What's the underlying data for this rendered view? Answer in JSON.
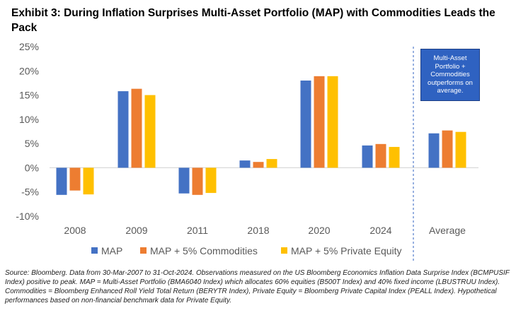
{
  "chart_data": {
    "type": "bar",
    "title": "Exhibit 3: During Inflation Surprises Multi-Asset Portfolio (MAP) with Commodities Leads the Pack",
    "categories": [
      "2008",
      "2009",
      "2011",
      "2018",
      "2020",
      "2024",
      "Average"
    ],
    "series": [
      {
        "name": "MAP",
        "color": "#4472c4",
        "values": [
          -5.6,
          15.8,
          -5.3,
          1.5,
          18.0,
          4.6,
          7.1
        ]
      },
      {
        "name": "MAP + 5% Commodities",
        "color": "#ed7d31",
        "values": [
          -4.7,
          16.3,
          -5.6,
          1.2,
          18.9,
          4.9,
          7.7
        ]
      },
      {
        "name": "MAP + 5% Private Equity",
        "color": "#ffc000",
        "values": [
          -5.5,
          15.0,
          -5.2,
          1.8,
          18.9,
          4.3,
          7.4
        ]
      }
    ],
    "y_ticks": [
      "25%",
      "20%",
      "15%",
      "10%",
      "5%",
      "0%",
      "-5%",
      "-10%"
    ],
    "ylim": [
      -10,
      25
    ],
    "xlabel": "",
    "ylabel": "",
    "legend_position": "bottom",
    "annotation": "Multi-Asset Portfolio + Commodities outperforms on average."
  },
  "source_note": "Source: Bloomberg. Data from 30-Mar-2007 to 31-Oct-2024. Observations measured on the US Bloomberg Economics Inflation Data Surprise Index (BCMPUSIF Index) positive to peak. MAP = Multi-Asset Portfolio (BMA6040 Index) which allocates 60% equities (B500T Index) and 40% fixed income (LBUSTRUU Index). Commodities = Bloomberg Enhanced Roll Yield Total Return (BERYTR Index), Private Equity = Bloomberg Private Capital Index (PEALL Index). Hypothetical performances based on non-financial benchmark data for Private Equity."
}
